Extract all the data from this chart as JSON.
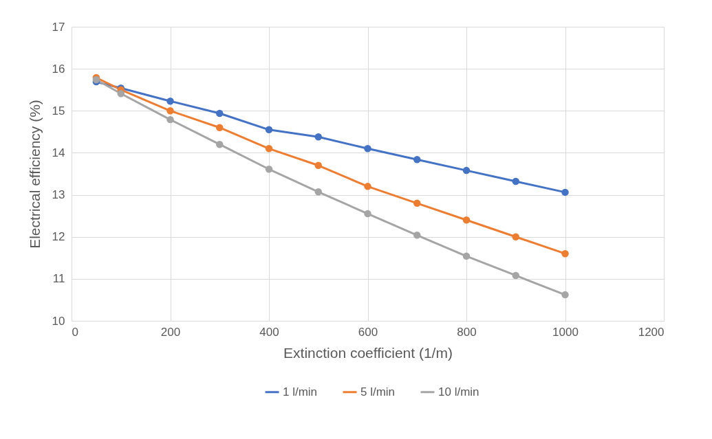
{
  "chart_data": {
    "type": "line",
    "xlabel": "Extinction coefficient (1/m)",
    "ylabel": "Electrical efficiency (%)",
    "x": [
      50,
      100,
      200,
      300,
      400,
      500,
      600,
      700,
      800,
      900,
      1000
    ],
    "series": [
      {
        "name": "1 l/min",
        "color": "#4472c4",
        "values": [
          15.69,
          15.54,
          15.23,
          14.94,
          14.55,
          14.38,
          14.1,
          13.84,
          13.58,
          13.32,
          13.06
        ]
      },
      {
        "name": "5 l/min",
        "color": "#ed7d31",
        "values": [
          15.79,
          15.5,
          15.0,
          14.6,
          14.1,
          13.7,
          13.2,
          12.8,
          12.4,
          12.0,
          11.6
        ]
      },
      {
        "name": "10 l/min",
        "color": "#a5a5a5",
        "values": [
          15.74,
          15.41,
          14.79,
          14.2,
          13.61,
          13.07,
          12.55,
          12.04,
          11.54,
          11.08,
          10.62
        ]
      }
    ],
    "xlim": [
      0,
      1200
    ],
    "xticks": [
      0,
      200,
      400,
      600,
      800,
      1000,
      1200
    ],
    "ylim": [
      10,
      17
    ],
    "yticks": [
      10,
      11,
      12,
      13,
      14,
      15,
      16,
      17
    ],
    "grid": true,
    "legend": "bottom",
    "marker": "circle",
    "line_style": "solid"
  }
}
